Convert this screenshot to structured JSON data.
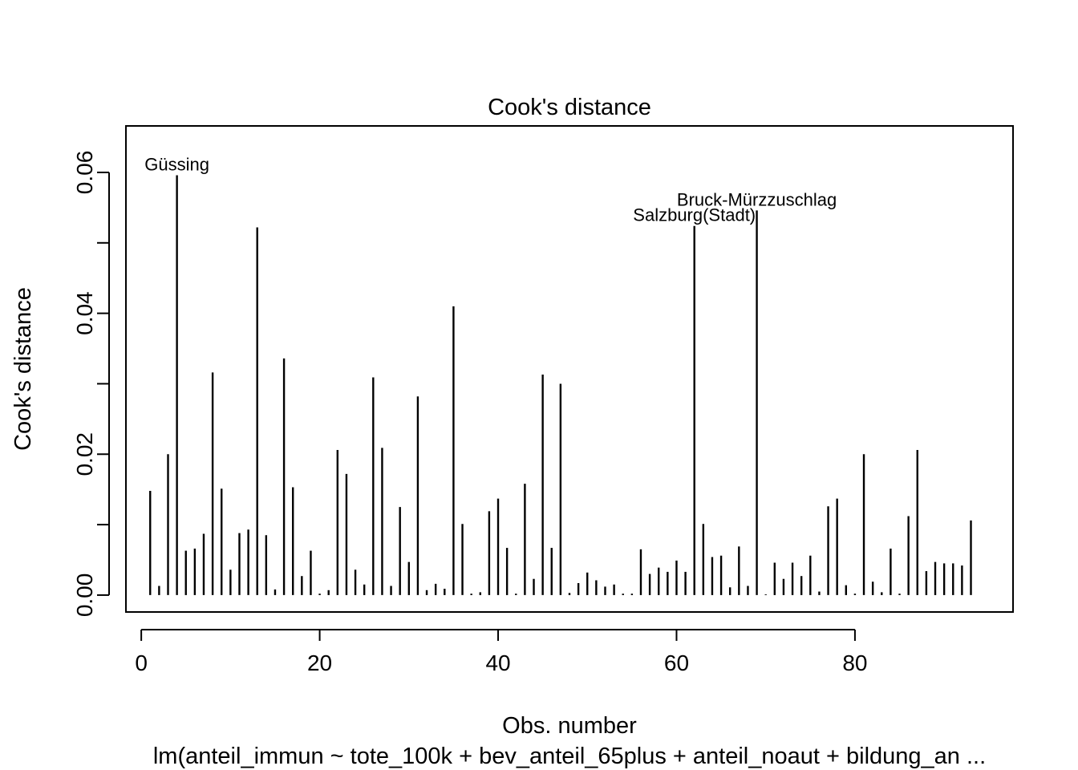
{
  "chart_data": {
    "type": "bar",
    "title": "Cook's distance",
    "xlabel": "Obs. number",
    "ylabel": "Cook's distance",
    "subtitle": "lm(anteil_immun ~ tote_100k + bev_anteil_65plus + anteil_noaut + bildung_an ...",
    "xlim": [
      -1.72,
      97.72
    ],
    "ylim": [
      -0.0024,
      0.0666
    ],
    "xticks": [
      {
        "value": 0,
        "label": "0"
      },
      {
        "value": 20,
        "label": "20"
      },
      {
        "value": 40,
        "label": "40"
      },
      {
        "value": 60,
        "label": "60"
      },
      {
        "value": 80,
        "label": "80"
      }
    ],
    "yticks": [
      {
        "value": 0.0,
        "label": "0.00"
      },
      {
        "value": 0.01,
        "label": ""
      },
      {
        "value": 0.02,
        "label": "0.02"
      },
      {
        "value": 0.03,
        "label": ""
      },
      {
        "value": 0.04,
        "label": "0.04"
      },
      {
        "value": 0.05,
        "label": ""
      },
      {
        "value": 0.06,
        "label": "0.06"
      }
    ],
    "x": [
      1,
      2,
      3,
      4,
      5,
      6,
      7,
      8,
      9,
      10,
      11,
      12,
      13,
      14,
      15,
      16,
      17,
      18,
      19,
      20,
      21,
      22,
      23,
      24,
      25,
      26,
      27,
      28,
      29,
      30,
      31,
      32,
      33,
      34,
      35,
      36,
      37,
      38,
      39,
      40,
      41,
      42,
      43,
      44,
      45,
      46,
      47,
      48,
      49,
      50,
      51,
      52,
      53,
      54,
      55,
      56,
      57,
      58,
      59,
      60,
      61,
      62,
      63,
      64,
      65,
      66,
      67,
      68,
      69,
      70,
      71,
      72,
      73,
      74,
      75,
      76,
      77,
      78,
      79,
      80,
      81,
      82,
      83,
      84,
      85,
      86,
      87,
      88,
      89,
      90,
      91,
      92,
      93
    ],
    "values": [
      0.0148,
      0.0013,
      0.02,
      0.0596,
      0.0063,
      0.0066,
      0.0087,
      0.0316,
      0.0151,
      0.0036,
      0.0088,
      0.0093,
      0.0522,
      0.0085,
      0.0008,
      0.0336,
      0.0153,
      0.0027,
      0.0063,
      0.0002,
      0.0007,
      0.0206,
      0.0172,
      0.0036,
      0.0015,
      0.0309,
      0.0209,
      0.0013,
      0.0125,
      0.0047,
      0.0282,
      0.0007,
      0.0016,
      0.0009,
      0.041,
      0.0101,
      0.0002,
      0.0004,
      0.0119,
      0.0137,
      0.0067,
      0.0002,
      0.0158,
      0.0023,
      0.0313,
      0.0067,
      0.03,
      0.0003,
      0.0017,
      0.0032,
      0.0021,
      0.0012,
      0.0015,
      0.0002,
      0.0002,
      0.0065,
      0.003,
      0.0039,
      0.0033,
      0.0049,
      0.0033,
      0.0524,
      0.0101,
      0.0054,
      0.0056,
      0.0011,
      0.0069,
      0.0013,
      0.0546,
      0.0001,
      0.0046,
      0.0023,
      0.0046,
      0.0027,
      0.0056,
      0.0005,
      0.0126,
      0.0137,
      0.0014,
      0.0002,
      0.02,
      0.0019,
      0.0004,
      0.0066,
      0.0002,
      0.0112,
      0.0206,
      0.0034,
      0.0047,
      0.0045,
      0.0045,
      0.0042,
      0.0106
    ],
    "annotations": [
      {
        "label": "Güssing",
        "x": 4,
        "y": 0.0596
      },
      {
        "label": "Salzburg(Stadt)",
        "x": 62,
        "y": 0.0524
      },
      {
        "label": "Bruck-Mürzzuschlag",
        "x": 69,
        "y": 0.0546
      }
    ]
  }
}
